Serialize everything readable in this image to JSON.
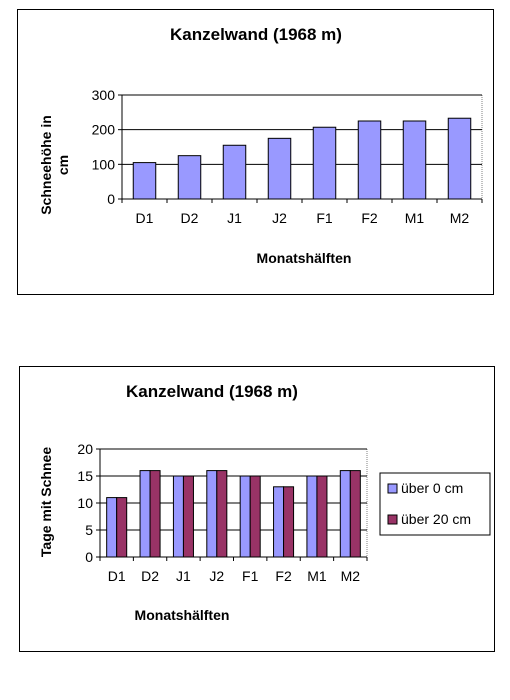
{
  "chart_data": [
    {
      "type": "bar",
      "title": "Kanzelwand (1968 m)",
      "xlabel": "Monatshälften",
      "ylabel_line1": "Schneehöhe in",
      "ylabel_line2": "cm",
      "categories": [
        "D1",
        "D2",
        "J1",
        "J2",
        "F1",
        "F2",
        "M1",
        "M2"
      ],
      "ylim": [
        0,
        300
      ],
      "yticks": [
        0,
        100,
        200,
        300
      ],
      "grid": true,
      "series": [
        {
          "values": [
            105,
            125,
            155,
            175,
            207,
            225,
            225,
            233
          ],
          "color": "#9999ff"
        }
      ]
    },
    {
      "type": "bar",
      "title": "Kanzelwand (1968 m)",
      "xlabel": "Monatshälften",
      "ylabel": "Tage mit Schnee",
      "categories": [
        "D1",
        "D2",
        "J1",
        "J2",
        "F1",
        "F2",
        "M1",
        "M2"
      ],
      "ylim": [
        0,
        20
      ],
      "yticks": [
        0,
        5,
        10,
        15,
        20
      ],
      "grid": true,
      "legend_position": "right",
      "series": [
        {
          "name": "über 0 cm",
          "values": [
            11,
            16,
            15,
            16,
            15,
            13,
            15,
            16
          ],
          "color": "#9999ff"
        },
        {
          "name": "über 20 cm",
          "values": [
            11,
            16,
            15,
            16,
            15,
            13,
            15,
            16
          ],
          "color": "#993366"
        }
      ]
    }
  ]
}
